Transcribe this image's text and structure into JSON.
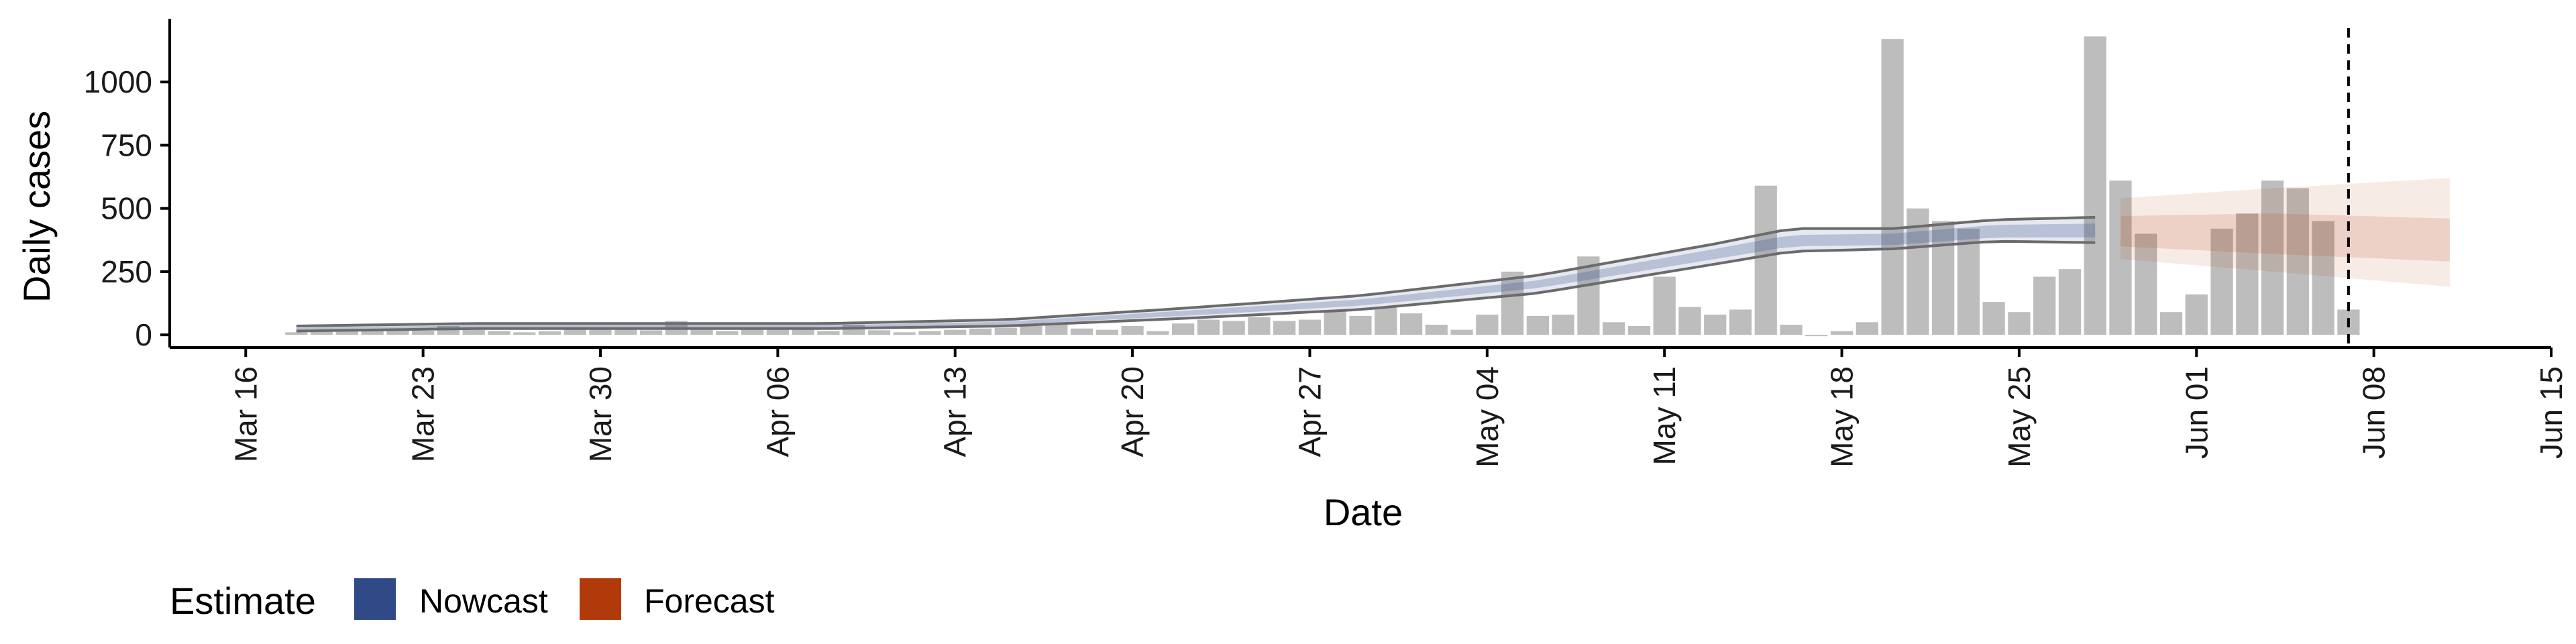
{
  "chart_data": {
    "type": "bar",
    "xlabel": "Date",
    "ylabel": "Daily cases",
    "x_axis_type": "date",
    "xlim": [
      "2020-03-13",
      "2020-06-15"
    ],
    "ylim": [
      -50,
      1250
    ],
    "y_ticks": [
      0,
      250,
      500,
      750,
      1000
    ],
    "y_tick_labels": [
      "0",
      "250",
      "500",
      "750",
      "1000"
    ],
    "x_ticks": [
      "2020-03-16",
      "2020-03-23",
      "2020-03-30",
      "2020-04-06",
      "2020-04-13",
      "2020-04-20",
      "2020-04-27",
      "2020-05-04",
      "2020-05-11",
      "2020-05-18",
      "2020-05-25",
      "2020-06-01",
      "2020-06-08",
      "2020-06-15"
    ],
    "x_tick_labels": [
      "Mar 16",
      "Mar 23",
      "Mar 30",
      "Apr 06",
      "Apr 13",
      "Apr 20",
      "Apr 27",
      "May 04",
      "May 11",
      "May 18",
      "May 25",
      "Jun 01",
      "Jun 08",
      "Jun 15"
    ],
    "grid": false,
    "bar_color": "#bdbdbd",
    "bars_start_date": "2020-03-18",
    "bars": [
      10,
      12,
      15,
      18,
      20,
      16,
      35,
      20,
      15,
      10,
      14,
      25,
      22,
      30,
      18,
      55,
      20,
      15,
      22,
      28,
      30,
      15,
      40,
      18,
      10,
      15,
      20,
      25,
      28,
      35,
      40,
      25,
      20,
      35,
      15,
      45,
      60,
      55,
      70,
      55,
      60,
      95,
      75,
      110,
      85,
      40,
      20,
      80,
      250,
      75,
      80,
      310,
      50,
      35,
      230,
      110,
      80,
      100,
      590,
      40,
      0,
      15,
      50,
      1170,
      500,
      450,
      420,
      130,
      90,
      230,
      260,
      1180,
      610,
      400,
      90,
      160,
      420,
      480,
      610,
      580,
      450,
      100
    ],
    "nowcast": {
      "name": "Nowcast",
      "color": "#2f4a87",
      "start_date": "2020-03-18",
      "end_date": "2020-05-28",
      "inner_band_knots": [
        [
          "2020-03-18",
          20,
          28
        ],
        [
          "2020-03-25",
          30,
          38
        ],
        [
          "2020-04-01",
          30,
          38
        ],
        [
          "2020-04-08",
          30,
          38
        ],
        [
          "2020-04-15",
          40,
          52
        ],
        [
          "2020-04-22",
          75,
          95
        ],
        [
          "2020-04-29",
          115,
          140
        ],
        [
          "2020-05-06",
          185,
          215
        ],
        [
          "2020-05-13",
          300,
          340
        ],
        [
          "2020-05-16",
          350,
          395
        ],
        [
          "2020-05-20",
          355,
          400
        ],
        [
          "2020-05-24",
          385,
          435
        ],
        [
          "2020-05-28",
          385,
          440
        ]
      ],
      "outer_band_knots": [
        [
          "2020-03-18",
          15,
          35
        ],
        [
          "2020-03-25",
          25,
          45
        ],
        [
          "2020-04-01",
          25,
          45
        ],
        [
          "2020-04-08",
          25,
          45
        ],
        [
          "2020-04-15",
          35,
          60
        ],
        [
          "2020-04-22",
          65,
          105
        ],
        [
          "2020-04-29",
          100,
          155
        ],
        [
          "2020-05-06",
          165,
          235
        ],
        [
          "2020-05-13",
          280,
          360
        ],
        [
          "2020-05-16",
          330,
          420
        ],
        [
          "2020-05-20",
          340,
          420
        ],
        [
          "2020-05-24",
          370,
          455
        ],
        [
          "2020-05-28",
          365,
          465
        ]
      ]
    },
    "forecast": {
      "name": "Forecast",
      "color": "#b23a0a",
      "start_date": "2020-05-29",
      "end_date": "2020-06-11",
      "inner_band_knots": [
        [
          "2020-05-29",
          350,
          470
        ],
        [
          "2020-06-04",
          320,
          480
        ],
        [
          "2020-06-11",
          290,
          460
        ]
      ],
      "outer_band_knots": [
        [
          "2020-05-29",
          300,
          540
        ],
        [
          "2020-06-04",
          250,
          580
        ],
        [
          "2020-06-11",
          190,
          620
        ]
      ]
    },
    "vertical_reference_line": {
      "date": "2020-06-07",
      "style": "dashed",
      "color": "#000000"
    },
    "legend": {
      "title": "Estimate",
      "position": "bottom-left",
      "items": [
        {
          "label": "Nowcast",
          "color": "#2f4a87"
        },
        {
          "label": "Forecast",
          "color": "#b23a0a"
        }
      ]
    }
  }
}
